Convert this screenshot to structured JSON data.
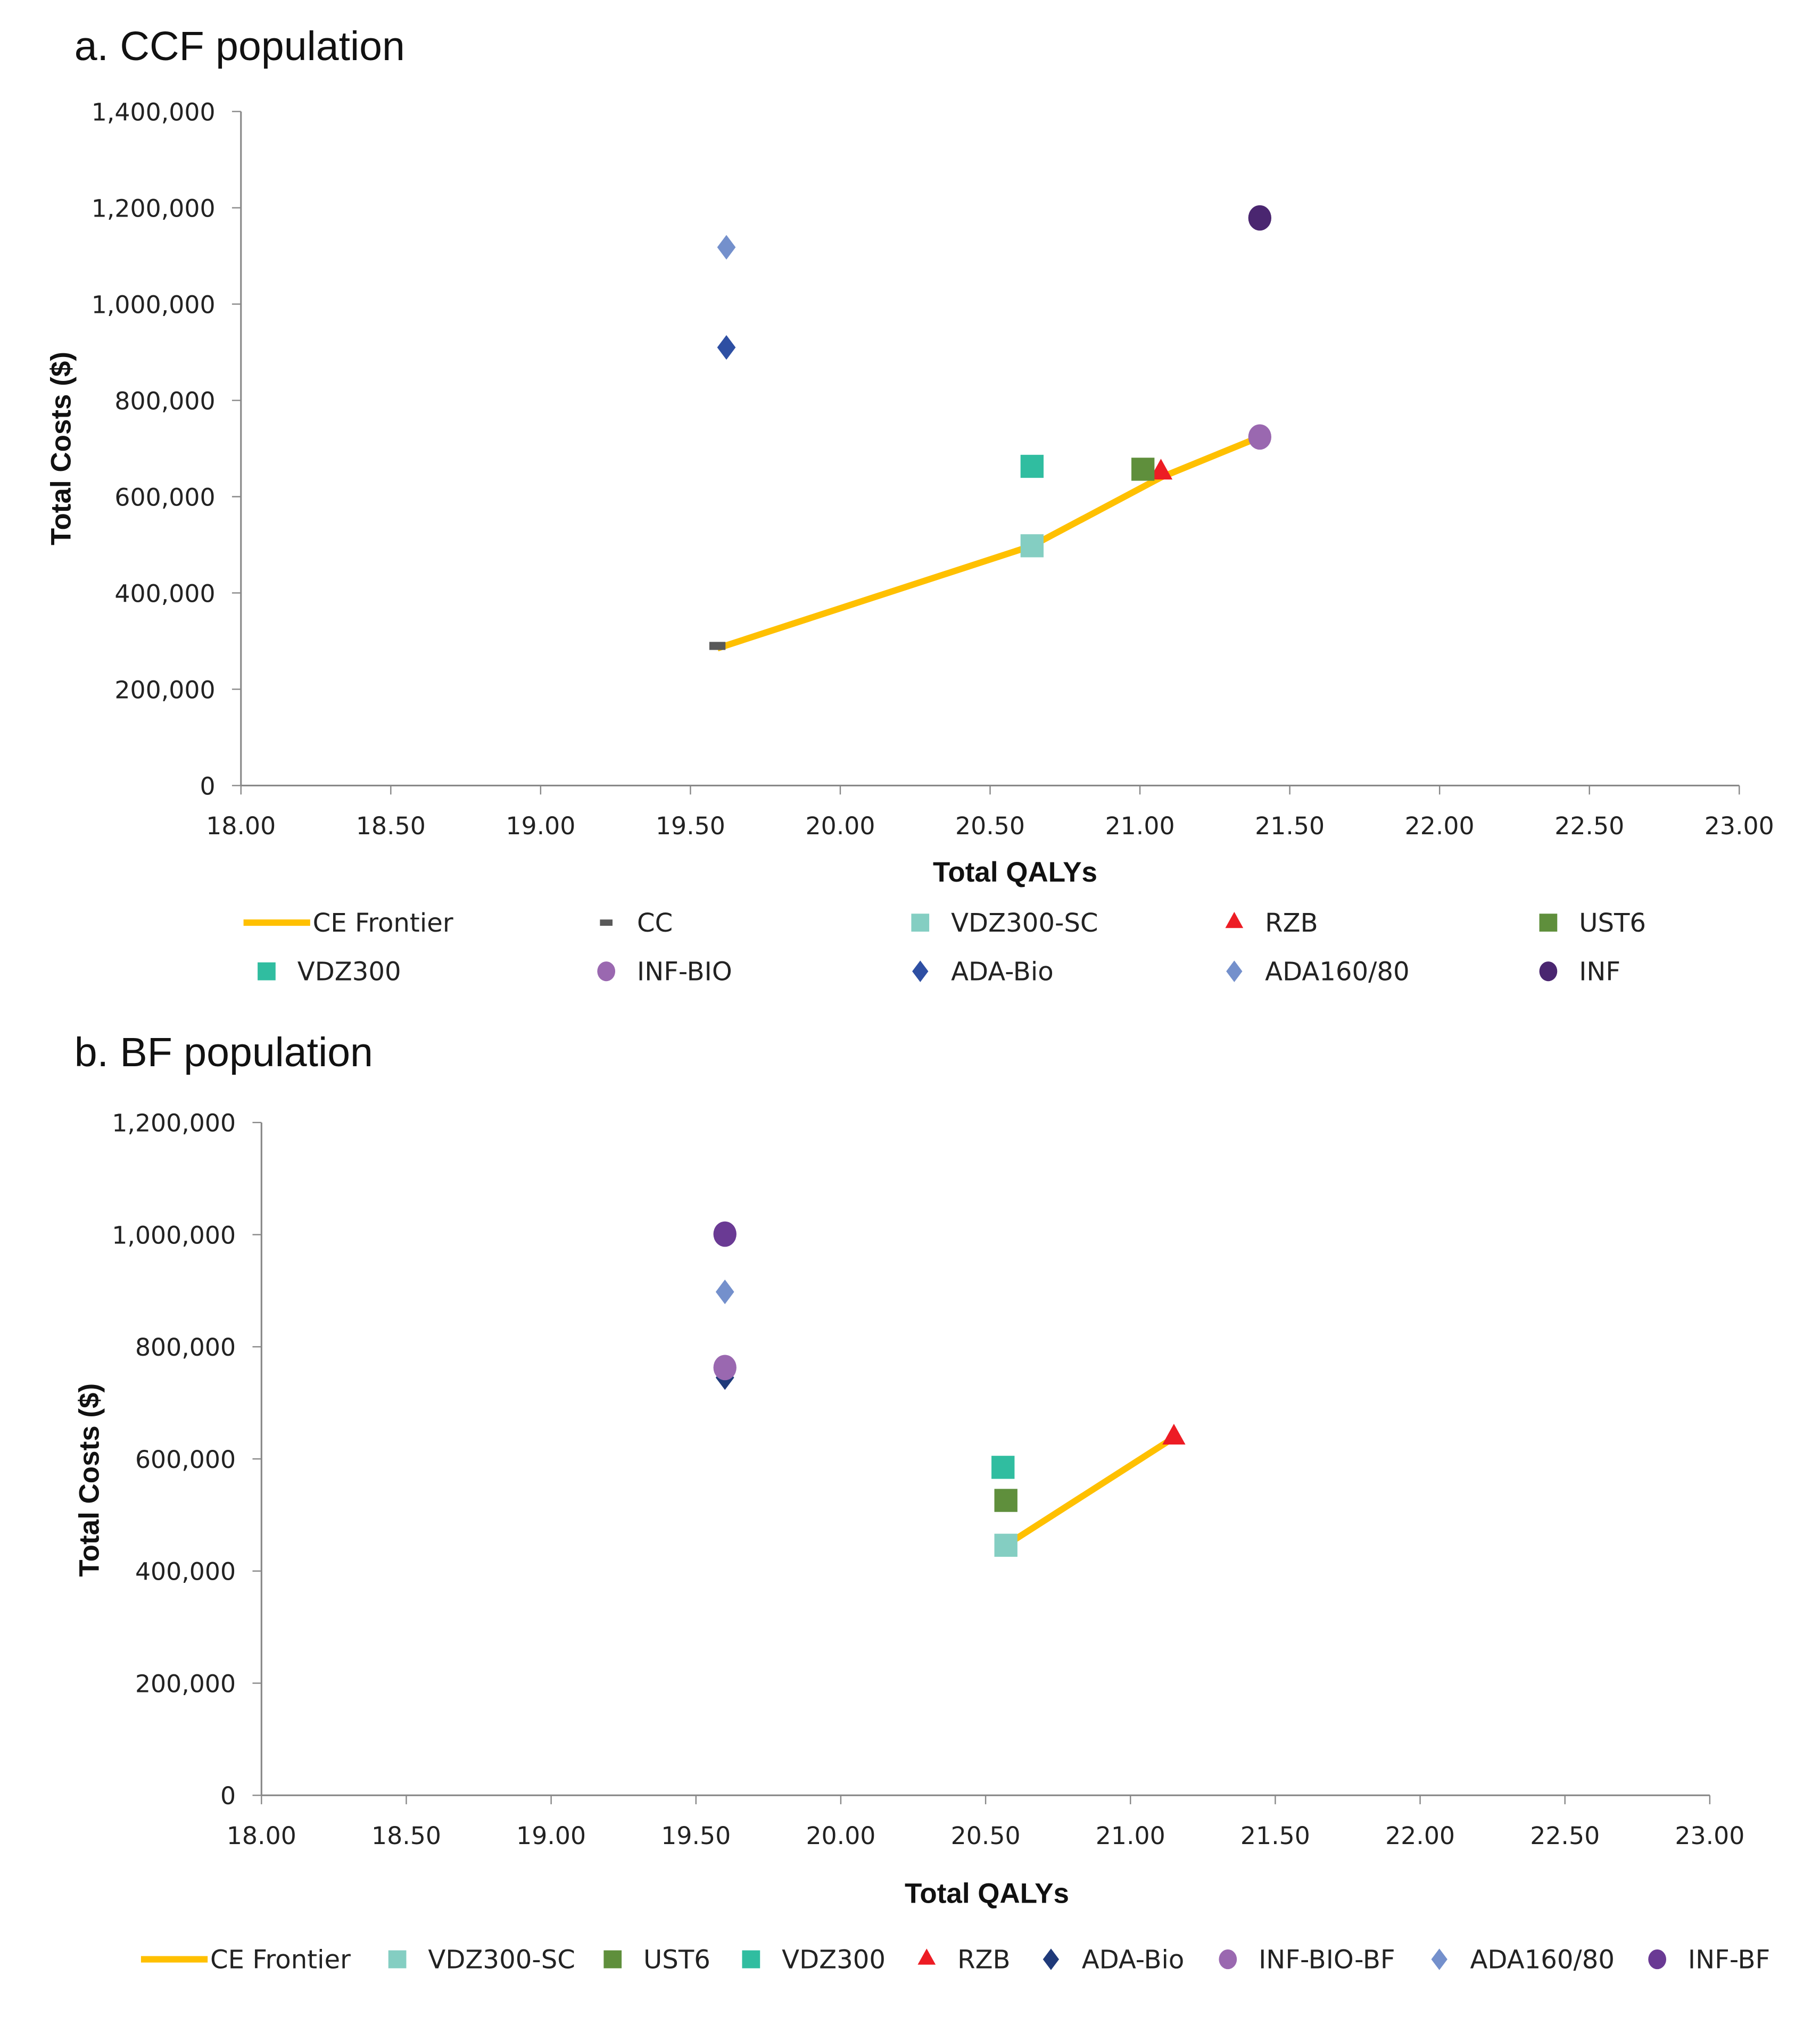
{
  "chart_data": [
    {
      "type": "scatter",
      "title": "a.   CCF population",
      "xlabel": "Total QALYs",
      "ylabel": "Total Costs ($)",
      "xlim": [
        18,
        23
      ],
      "ylim": [
        0,
        1400000
      ],
      "xticks": [
        "18.00",
        "18.50",
        "19.00",
        "19.50",
        "20.00",
        "20.50",
        "21.00",
        "21.50",
        "22.00",
        "22.50",
        "23.00"
      ],
      "yticks": [
        "0",
        "200,000",
        "400,000",
        "600,000",
        "800,000",
        "1,000,000",
        "1,200,000",
        "1,400,000"
      ],
      "grid": false,
      "legend_position": "bottom",
      "series": [
        {
          "name": "CC",
          "marker": "dash",
          "color": "#595959",
          "x": 19.59,
          "y": 290000
        },
        {
          "name": "VDZ300-SC",
          "marker": "square",
          "color": "#84CEC2",
          "x": 20.64,
          "y": 498000
        },
        {
          "name": "RZB",
          "marker": "triangle",
          "color": "#ED1C24",
          "x": 21.07,
          "y": 650000
        },
        {
          "name": "UST6",
          "marker": "square",
          "color": "#5F8F3C",
          "x": 21.01,
          "y": 657000
        },
        {
          "name": "VDZ300",
          "marker": "square",
          "color": "#30BDA0",
          "x": 20.64,
          "y": 663000
        },
        {
          "name": "INF-BIO",
          "marker": "circle",
          "color": "#9A68B0",
          "x": 21.4,
          "y": 724000
        },
        {
          "name": "ADA-Bio",
          "marker": "diamond",
          "color": "#2E4FA3",
          "x": 19.62,
          "y": 910000
        },
        {
          "name": "ADA160/80",
          "marker": "diamond",
          "color": "#7490CC",
          "x": 19.62,
          "y": 1118000
        },
        {
          "name": "INF",
          "marker": "circle",
          "color": "#4A2670",
          "x": 21.4,
          "y": 1179000
        }
      ],
      "frontier": {
        "name": "CE Frontier",
        "color": "#FFC000",
        "points": [
          [
            19.59,
            285000
          ],
          [
            20.64,
            498000
          ],
          [
            21.07,
            640000
          ],
          [
            21.4,
            724000
          ]
        ]
      },
      "legend_order": [
        "CE Frontier",
        "CC",
        "VDZ300-SC",
        "RZB",
        "UST6",
        "VDZ300",
        "INF-BIO",
        "ADA-Bio",
        "ADA160/80",
        "INF"
      ]
    },
    {
      "type": "scatter",
      "title": "b.   BF population",
      "xlabel": "Total QALYs",
      "ylabel": "Total Costs ($)",
      "xlim": [
        18,
        23
      ],
      "ylim": [
        0,
        1200000
      ],
      "xticks": [
        "18.00",
        "18.50",
        "19.00",
        "19.50",
        "20.00",
        "20.50",
        "21.00",
        "21.50",
        "22.00",
        "22.50",
        "23.00"
      ],
      "yticks": [
        "0",
        "200,000",
        "400,000",
        "600,000",
        "800,000",
        "1,000,000",
        "1,200,000"
      ],
      "grid": false,
      "legend_position": "bottom",
      "series": [
        {
          "name": "VDZ300-SC",
          "marker": "square",
          "color": "#84CEC2",
          "x": 20.57,
          "y": 446000
        },
        {
          "name": "UST6",
          "marker": "square",
          "color": "#5F8F3C",
          "x": 20.57,
          "y": 526000
        },
        {
          "name": "VDZ300",
          "marker": "square",
          "color": "#30BDA0",
          "x": 20.56,
          "y": 585000
        },
        {
          "name": "RZB",
          "marker": "triangle",
          "color": "#ED1C24",
          "x": 21.15,
          "y": 638000
        },
        {
          "name": "ADA-Bio",
          "marker": "diamond",
          "color": "#1F3A7A",
          "x": 19.6,
          "y": 745000
        },
        {
          "name": "INF-BIO-BF",
          "marker": "circle",
          "color": "#9A68B0",
          "x": 19.6,
          "y": 763000
        },
        {
          "name": "ADA160/80",
          "marker": "diamond",
          "color": "#7490CC",
          "x": 19.6,
          "y": 898000
        },
        {
          "name": "INF-BF",
          "marker": "circle",
          "color": "#6A3A94",
          "x": 19.6,
          "y": 1001000
        }
      ],
      "frontier": {
        "name": "CE Frontier",
        "color": "#FFC000",
        "points": [
          [
            20.57,
            446000
          ],
          [
            21.15,
            638000
          ]
        ]
      },
      "legend_order": [
        "CE Frontier",
        "VDZ300-SC",
        "UST6",
        "VDZ300",
        "RZB",
        "ADA-Bio",
        "INF-BIO-BF",
        "ADA160/80",
        "INF-BF"
      ]
    }
  ]
}
